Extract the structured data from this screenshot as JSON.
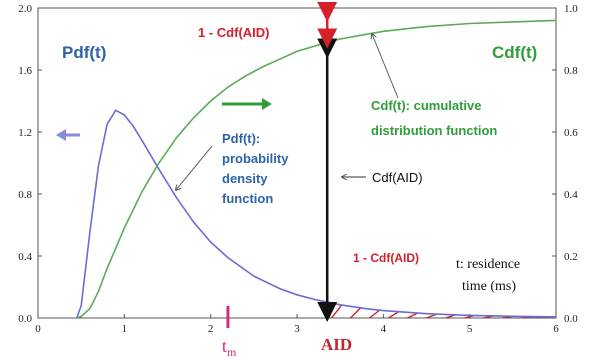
{
  "chart_data": {
    "type": "line",
    "title": "",
    "xlabel": "",
    "ylabel": "",
    "xlim": [
      0,
      6
    ],
    "ylim_left": [
      0,
      2.0
    ],
    "ylim_right": [
      0,
      1.0
    ],
    "grid": false,
    "x_ticks": [
      "0",
      "1",
      "2",
      "3",
      "4",
      "5",
      "6"
    ],
    "y_ticks_left": [
      "0.0",
      "0.4",
      "0.8",
      "1.2",
      "1.6",
      "2.0"
    ],
    "y_ticks_right": [
      "0.0",
      "0.2",
      "0.4",
      "0.6",
      "0.8",
      "1.0"
    ],
    "series": [
      {
        "name": "Pdf(t)",
        "axis": "left",
        "color": "#6b6bd6",
        "x": [
          0.45,
          0.5,
          0.6,
          0.7,
          0.8,
          0.9,
          1.0,
          1.1,
          1.2,
          1.4,
          1.6,
          1.8,
          2.0,
          2.2,
          2.5,
          2.8,
          3.0,
          3.2,
          3.5,
          3.8,
          4.0,
          4.5,
          5.0,
          5.5,
          6.0
        ],
        "y": [
          0.0,
          0.08,
          0.55,
          0.98,
          1.25,
          1.34,
          1.31,
          1.24,
          1.15,
          0.96,
          0.78,
          0.62,
          0.49,
          0.39,
          0.27,
          0.19,
          0.15,
          0.12,
          0.085,
          0.06,
          0.048,
          0.028,
          0.017,
          0.011,
          0.007
        ]
      },
      {
        "name": "Cdf(t)",
        "axis": "right",
        "color": "#5aab55",
        "x": [
          0.45,
          0.5,
          0.6,
          0.7,
          0.8,
          0.9,
          1.0,
          1.2,
          1.4,
          1.6,
          1.8,
          2.0,
          2.2,
          2.4,
          2.6,
          2.8,
          3.0,
          3.3,
          3.5,
          3.8,
          4.0,
          4.5,
          5.0,
          5.5,
          6.0
        ],
        "y": [
          0.0,
          0.005,
          0.03,
          0.085,
          0.16,
          0.225,
          0.29,
          0.405,
          0.5,
          0.58,
          0.645,
          0.7,
          0.745,
          0.78,
          0.81,
          0.835,
          0.86,
          0.885,
          0.9,
          0.915,
          0.925,
          0.94,
          0.95,
          0.955,
          0.96
        ]
      }
    ],
    "aid": 3.35,
    "tm": 2.2,
    "annotations": {
      "pdf_label": "Pdf(t)",
      "cdf_label": "Cdf(t)",
      "one_minus_cdf_top": "1 - Cdf(AID)",
      "one_minus_cdf_bottom": "1 - Cdf(AID)",
      "cdf_aid": "Cdf(AID)",
      "cdf_desc_1": "Cdf(t): cumulative",
      "cdf_desc_2": "distribution function",
      "pdf_desc_1": "Pdf(t):",
      "pdf_desc_2": "probability",
      "pdf_desc_3": "density",
      "pdf_desc_4": "function",
      "residence_1": "t: residence",
      "residence_2": "time (ms)",
      "aid_label": "AID",
      "tm_label": "t",
      "tm_sub": "m"
    }
  }
}
